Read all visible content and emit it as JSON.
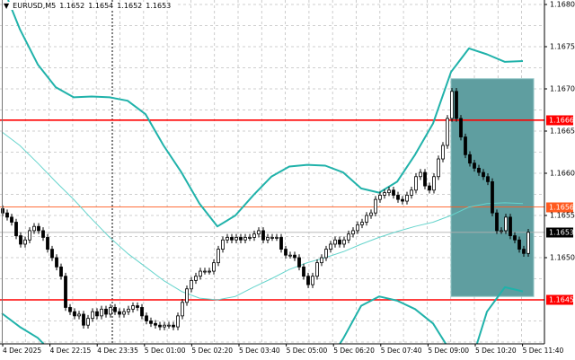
{
  "header": {
    "collapse_icon": "triangle-down-icon",
    "symbol": "EURUSD,M5",
    "ohlc": [
      "1.1652",
      "1.1654",
      "1.1652",
      "1.1653"
    ]
  },
  "colors": {
    "bull_fill": "#ffffff",
    "bear_fill": "#000000",
    "band": "#20b2aa",
    "ma": "#66d4cc",
    "red_level": "#ff0000",
    "orange_level": "#ff5a1f",
    "current_price": "#000000",
    "rectangle": "#5f9ea0",
    "grid": "#c0c0c0"
  },
  "chart_data": {
    "type": "candlestick",
    "symbol": "EURUSD",
    "timeframe": "M5",
    "ylim": [
      1.16365,
      1.16803
    ],
    "price_ticks": [
      "1.1680",
      "1.1675",
      "1.1670",
      "1.1665",
      "1.1660",
      "1.1655",
      "1.1650"
    ],
    "time_ticks": [
      "4 Dec 2025",
      "4 Dec 22:15",
      "4 Dec 23:35",
      "5 Dec 01:00",
      "5 Dec 02:20",
      "5 Dec 03:40",
      "5 Dec 05:00",
      "5 Dec 06:20",
      "5 Dec 07:40",
      "5 Dec 09:00",
      "5 Dec 10:20",
      "5 Dec 11:40"
    ],
    "closes": [
      1.16553,
      1.16548,
      1.16542,
      1.16526,
      1.16516,
      1.16521,
      1.16532,
      1.16537,
      1.16532,
      1.16524,
      1.1651,
      1.165,
      1.16489,
      1.16478,
      1.16441,
      1.16436,
      1.16431,
      1.16433,
      1.1642,
      1.16428,
      1.16436,
      1.16431,
      1.16439,
      1.16433,
      1.16441,
      1.16436,
      1.16433,
      1.16436,
      1.16439,
      1.16443,
      1.16441,
      1.16431,
      1.16425,
      1.16422,
      1.1642,
      1.16418,
      1.1642,
      1.1642,
      1.16418,
      1.16431,
      1.16447,
      1.16463,
      1.16473,
      1.16478,
      1.16484,
      1.16484,
      1.16484,
      1.16494,
      1.1651,
      1.16521,
      1.16524,
      1.16521,
      1.16524,
      1.16521,
      1.16524,
      1.16524,
      1.16528,
      1.16532,
      1.16521,
      1.16524,
      1.16524,
      1.16524,
      1.1651,
      1.16503,
      1.16503,
      1.165,
      1.16489,
      1.16478,
      1.16468,
      1.16478,
      1.16494,
      1.165,
      1.1651,
      1.16516,
      1.16521,
      1.16516,
      1.16521,
      1.16528,
      1.16532,
      1.16539,
      1.16542,
      1.1655,
      1.16553,
      1.16569,
      1.16574,
      1.16577,
      1.1658,
      1.16574,
      1.16569,
      1.16567,
      1.16574,
      1.1658,
      1.16596,
      1.16601,
      1.16585,
      1.1658,
      1.16596,
      1.16617,
      1.16633,
      1.16665,
      1.16697,
      1.16665,
      1.16643,
      1.16622,
      1.16612,
      1.16606,
      1.16601,
      1.16596,
      1.1659,
      1.16553,
      1.16532,
      1.16532,
      1.16548,
      1.16526,
      1.16521,
      1.1651,
      1.16505,
      1.1653
    ],
    "indicator_sample_step": 4,
    "bollinger_upper": [
      1.16824,
      1.16771,
      1.16729,
      1.16702,
      1.1669,
      1.16691,
      1.1669,
      1.16686,
      1.1667,
      1.16633,
      1.16601,
      1.16564,
      1.16537,
      1.1655,
      1.16574,
      1.16596,
      1.16608,
      1.1661,
      1.16609,
      1.16601,
      1.16582,
      1.16577,
      1.1659,
      1.16622,
      1.16659,
      1.1672,
      1.16748,
      1.16741,
      1.16732,
      1.16733
    ],
    "bollinger_lower": [
      1.16434,
      1.16418,
      1.16405,
      1.16383,
      1.16356,
      1.16335,
      1.16319,
      1.16308,
      1.16303,
      1.16303,
      1.16308,
      1.16314,
      1.16319,
      1.16324,
      1.1633,
      1.16335,
      1.16345,
      1.16356,
      1.16372,
      1.16404,
      1.16443,
      1.16454,
      1.16449,
      1.16439,
      1.16422,
      1.16388,
      1.16367,
      1.16436,
      1.16465,
      1.1646
    ],
    "moving_average": [
      1.16649,
      1.16633,
      1.16612,
      1.1659,
      1.16569,
      1.16546,
      1.16524,
      1.16505,
      1.16489,
      1.16473,
      1.1646,
      1.16452,
      1.1645,
      1.16454,
      1.16465,
      1.16475,
      1.16486,
      1.16494,
      1.165,
      1.16507,
      1.16516,
      1.16524,
      1.16531,
      1.16537,
      1.16542,
      1.1655,
      1.1656,
      1.16564,
      1.16565,
      1.16564
    ],
    "levels": [
      {
        "label": "1.1666",
        "price": 1.16663,
        "color": "#ff0000",
        "style": "thick"
      },
      {
        "label": "1.1656",
        "price": 1.1656,
        "color": "#ff5a1f",
        "style": "thin"
      },
      {
        "label": "1.1653",
        "price": 1.1653,
        "color": "#000000",
        "style": "current"
      },
      {
        "label": "1.1645",
        "price": 1.1645,
        "color": "#ff0000",
        "style": "thick"
      }
    ],
    "rectangle": {
      "price_top": 1.16712,
      "price_bottom": 1.16454,
      "start_candle": 100,
      "end_candle": 118.4
    },
    "vertical_line_candle": 24.6
  }
}
